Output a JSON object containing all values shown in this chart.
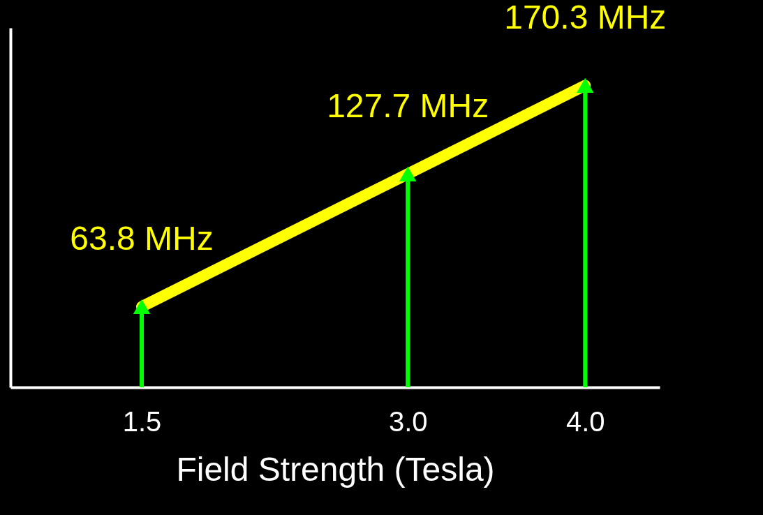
{
  "chart_data": {
    "type": "line",
    "xlabel": "Field Strength (Tesla)",
    "x": [
      1.5,
      3.0,
      4.0
    ],
    "series": [
      {
        "color": "#ffff00",
        "values": [
          63.8,
          127.7,
          170.3
        ],
        "value_labels": [
          "63.8 MHz",
          "127.7 MHz",
          "170.3 MHz"
        ]
      },
      {
        "type": "lollipop",
        "marker": "triangle",
        "color": "#00ff00",
        "values": [
          63.8,
          127.7,
          170.3
        ]
      }
    ],
    "xlim": [
      0.76,
      4.42
    ],
    "xticks": [
      1.5,
      {
        "value": 3,
        "label": "3.0"
      },
      {
        "value": 4,
        "label": "4.0"
      }
    ],
    "ylim": [
      25,
      198
    ],
    "tick_labels": "x",
    "grid": false
  }
}
